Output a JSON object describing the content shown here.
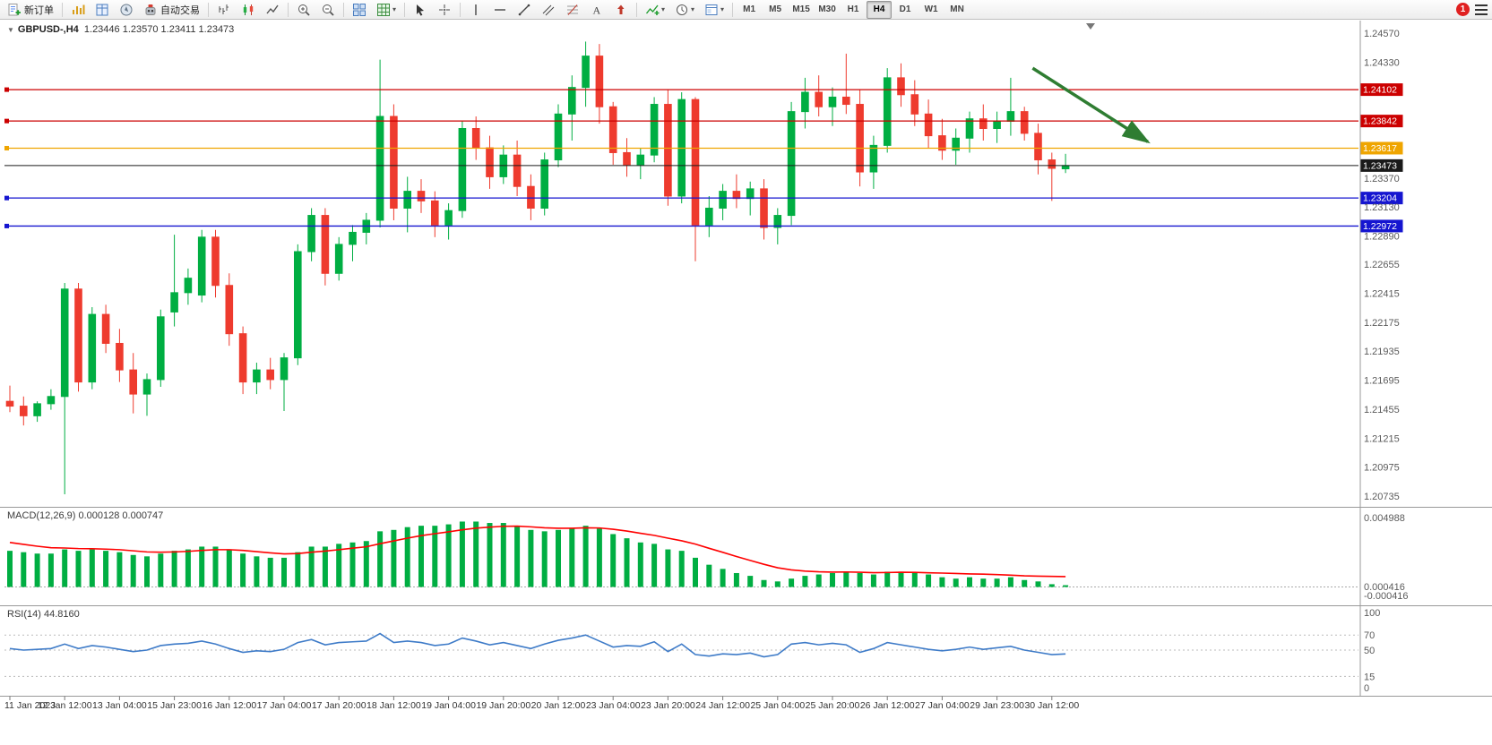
{
  "toolbar": {
    "new_order": "新订单",
    "autotrade": "自动交易",
    "timeframes": [
      "M1",
      "M5",
      "M15",
      "M30",
      "H1",
      "H4",
      "D1",
      "W1",
      "MN"
    ],
    "active_timeframe": "H4",
    "notification_count": "1"
  },
  "chart": {
    "symbol_title": "GBPUSD-,H4",
    "ohlc": "1.23446 1.23570 1.23411 1.23473",
    "macd_label": "MACD(12,26,9) 0.000128 0.000747",
    "rsi_label": "RSI(14) 44.8160"
  },
  "chart_data": {
    "type": "candlestick",
    "symbol": "GBPUSD-",
    "period": "H4",
    "title": "GBPUSD-,H4 1.23446 1.23570 1.23411 1.23473",
    "current_candle": {
      "open": 1.23446,
      "high": 1.2357,
      "low": 1.23411,
      "close": 1.23473
    },
    "colors": {
      "up": "#00AE42",
      "down": "#EE3B2E",
      "macd_hist": "#00AE42",
      "macd_signal": "#FF0000",
      "rsi": "#3E7BC8",
      "res_line": "#CC0000",
      "pivot_line": "#EFA500",
      "sup_line": "#1515D0",
      "price_line": "#1A1A1A",
      "arrow": "#2F7D32"
    },
    "price_axis_labels": [
      "1.24570",
      "1.24330",
      "1.23370",
      "1.23130",
      "1.22890",
      "1.22655",
      "1.22415",
      "1.22175",
      "1.21935",
      "1.21695",
      "1.21455",
      "1.21215",
      "1.20975",
      "1.20735"
    ],
    "hlines": [
      {
        "price": 1.24102,
        "label": "1.24102",
        "color": "#CC0000"
      },
      {
        "price": 1.23842,
        "label": "1.23842",
        "color": "#CC0000"
      },
      {
        "price": 1.23617,
        "label": "1.23617",
        "color": "#EFA500"
      },
      {
        "price": 1.23204,
        "label": "1.23204",
        "color": "#1515D0"
      },
      {
        "price": 1.22972,
        "label": "1.22972",
        "color": "#1515D0"
      }
    ],
    "current_price": {
      "price": 1.23473,
      "label": "1.23473",
      "color": "#1A1A1A"
    },
    "time_axis_labels": [
      "11 Jan 2023",
      "12 Jan 12:00",
      "13 Jan 04:00",
      "15 Jan 23:00",
      "16 Jan 12:00",
      "17 Jan 04:00",
      "17 Jan 20:00",
      "18 Jan 12:00",
      "19 Jan 04:00",
      "19 Jan 20:00",
      "20 Jan 12:00",
      "23 Jan 04:00",
      "23 Jan 20:00",
      "24 Jan 12:00",
      "25 Jan 04:00",
      "25 Jan 20:00",
      "26 Jan 12:00",
      "27 Jan 04:00",
      "29 Jan 23:00",
      "30 Jan 12:00"
    ],
    "candles": [
      [
        1.2152,
        1.2165,
        1.2143,
        1.2148
      ],
      [
        1.2148,
        1.2156,
        1.2132,
        1.214
      ],
      [
        1.214,
        1.2152,
        1.2135,
        1.215
      ],
      [
        1.215,
        1.2162,
        1.2145,
        1.2156
      ],
      [
        1.2156,
        1.225,
        1.2075,
        1.2245
      ],
      [
        1.2245,
        1.225,
        1.216,
        1.2168
      ],
      [
        1.2168,
        1.223,
        1.2162,
        1.2224
      ],
      [
        1.2224,
        1.2232,
        1.2192,
        1.22
      ],
      [
        1.22,
        1.2212,
        1.2168,
        1.2178
      ],
      [
        1.2178,
        1.2192,
        1.2142,
        1.2158
      ],
      [
        1.2158,
        1.2175,
        1.214,
        1.217
      ],
      [
        1.217,
        1.2228,
        1.2164,
        1.2222
      ],
      [
        1.2226,
        1.229,
        1.2214,
        1.2242
      ],
      [
        1.2242,
        1.2262,
        1.2232,
        1.2254
      ],
      [
        1.224,
        1.2294,
        1.2234,
        1.2288
      ],
      [
        1.2288,
        1.2294,
        1.2238,
        1.2248
      ],
      [
        1.2248,
        1.2258,
        1.2198,
        1.2208
      ],
      [
        1.2208,
        1.2214,
        1.2158,
        1.2168
      ],
      [
        1.2168,
        1.2184,
        1.2158,
        1.2178
      ],
      [
        1.2178,
        1.2188,
        1.2162,
        1.217
      ],
      [
        1.217,
        1.2192,
        1.2144,
        1.2188
      ],
      [
        1.2188,
        1.2282,
        1.2182,
        1.2276
      ],
      [
        1.2276,
        1.2312,
        1.2268,
        1.2306
      ],
      [
        1.2306,
        1.2312,
        1.2248,
        1.2258
      ],
      [
        1.2258,
        1.2288,
        1.2252,
        1.2282
      ],
      [
        1.2282,
        1.2298,
        1.2268,
        1.2292
      ],
      [
        1.2292,
        1.2308,
        1.2282,
        1.2302
      ],
      [
        1.2302,
        1.2435,
        1.2296,
        1.2388
      ],
      [
        1.2388,
        1.2398,
        1.2302,
        1.2312
      ],
      [
        1.2312,
        1.2338,
        1.2292,
        1.2326
      ],
      [
        1.2326,
        1.2336,
        1.2308,
        1.2318
      ],
      [
        1.2318,
        1.2326,
        1.2288,
        1.2298
      ],
      [
        1.2298,
        1.2316,
        1.2286,
        1.231
      ],
      [
        1.231,
        1.2384,
        1.2304,
        1.2378
      ],
      [
        1.2378,
        1.2388,
        1.2352,
        1.2362
      ],
      [
        1.2362,
        1.2372,
        1.2328,
        1.2338
      ],
      [
        1.2338,
        1.2364,
        1.2332,
        1.2356
      ],
      [
        1.2356,
        1.2368,
        1.2322,
        1.233
      ],
      [
        1.233,
        1.234,
        1.2302,
        1.2312
      ],
      [
        1.2312,
        1.2358,
        1.2306,
        1.2352
      ],
      [
        1.2352,
        1.2398,
        1.2346,
        1.239
      ],
      [
        1.239,
        1.2422,
        1.2368,
        1.2412
      ],
      [
        1.2412,
        1.245,
        1.2396,
        1.2438
      ],
      [
        1.2438,
        1.2448,
        1.2382,
        1.2396
      ],
      [
        1.2396,
        1.24,
        1.2348,
        1.2358
      ],
      [
        1.2358,
        1.237,
        1.2338,
        1.2348
      ],
      [
        1.2348,
        1.2362,
        1.2336,
        1.2356
      ],
      [
        1.2356,
        1.2404,
        1.235,
        1.2398
      ],
      [
        1.2398,
        1.241,
        1.2314,
        1.2322
      ],
      [
        1.2322,
        1.2408,
        1.2316,
        1.2402
      ],
      [
        1.2402,
        1.2404,
        1.2268,
        1.2298
      ],
      [
        1.2298,
        1.2322,
        1.2288,
        1.2312
      ],
      [
        1.2312,
        1.2332,
        1.2302,
        1.2326
      ],
      [
        1.2326,
        1.234,
        1.2312,
        1.232
      ],
      [
        1.232,
        1.2334,
        1.2306,
        1.2328
      ],
      [
        1.2328,
        1.2336,
        1.2286,
        1.2296
      ],
      [
        1.2296,
        1.2312,
        1.2282,
        1.2306
      ],
      [
        1.2306,
        1.24,
        1.2298,
        1.2392
      ],
      [
        1.2392,
        1.242,
        1.2378,
        1.2408
      ],
      [
        1.2408,
        1.2422,
        1.2388,
        1.2396
      ],
      [
        1.2396,
        1.2412,
        1.238,
        1.2404
      ],
      [
        1.2404,
        1.244,
        1.239,
        1.2398
      ],
      [
        1.2398,
        1.241,
        1.233,
        1.2342
      ],
      [
        1.2342,
        1.2372,
        1.2328,
        1.2364
      ],
      [
        1.2364,
        1.2428,
        1.2358,
        1.242
      ],
      [
        1.242,
        1.2432,
        1.2396,
        1.2406
      ],
      [
        1.2406,
        1.2418,
        1.238,
        1.239
      ],
      [
        1.239,
        1.2402,
        1.2362,
        1.2372
      ],
      [
        1.2372,
        1.2386,
        1.2352,
        1.236
      ],
      [
        1.236,
        1.2378,
        1.2348,
        1.237
      ],
      [
        1.237,
        1.2392,
        1.2358,
        1.2386
      ],
      [
        1.2386,
        1.2398,
        1.2368,
        1.2378
      ],
      [
        1.2378,
        1.2392,
        1.2366,
        1.2384
      ],
      [
        1.2384,
        1.242,
        1.2372,
        1.2392
      ],
      [
        1.2392,
        1.2396,
        1.2368,
        1.2374
      ],
      [
        1.2374,
        1.2382,
        1.234,
        1.2352
      ],
      [
        1.2352,
        1.2358,
        1.2318,
        1.2345
      ],
      [
        1.23446,
        1.2357,
        1.23411,
        1.23473
      ]
    ],
    "macd": {
      "label": "MACD(12,26,9) 0.000128 0.000747",
      "params": "12,26,9",
      "main_value": 0.000128,
      "signal_value": 0.000747,
      "scale_labels": [
        "0.004988",
        "0.000416",
        "-0.000416"
      ],
      "hist": [
        0.0026,
        0.0025,
        0.0024,
        0.0024,
        0.0027,
        0.0026,
        0.0027,
        0.0026,
        0.0025,
        0.0023,
        0.0022,
        0.0024,
        0.0026,
        0.0027,
        0.0029,
        0.0029,
        0.0027,
        0.0024,
        0.0022,
        0.0021,
        0.0021,
        0.0025,
        0.0029,
        0.0029,
        0.0031,
        0.0032,
        0.0033,
        0.004,
        0.0041,
        0.0043,
        0.0044,
        0.0044,
        0.0045,
        0.0047,
        0.0047,
        0.0046,
        0.0046,
        0.0044,
        0.0041,
        0.004,
        0.0041,
        0.0042,
        0.0044,
        0.0042,
        0.0038,
        0.0035,
        0.0032,
        0.0031,
        0.0027,
        0.0026,
        0.0021,
        0.0016,
        0.0013,
        0.001,
        0.0008,
        0.0005,
        0.0004,
        0.0006,
        0.0008,
        0.0009,
        0.001,
        0.0011,
        0.001,
        0.0009,
        0.0011,
        0.0011,
        0.001,
        0.0009,
        0.0007,
        0.0006,
        0.0007,
        0.0006,
        0.0006,
        0.0007,
        0.0005,
        0.0004,
        0.0002,
        0.000128
      ],
      "signal": [
        0.0032,
        0.00306,
        0.00293,
        0.00282,
        0.0028,
        0.00276,
        0.00275,
        0.00272,
        0.00268,
        0.0026,
        0.00252,
        0.0025,
        0.00252,
        0.00256,
        0.00263,
        0.00268,
        0.00268,
        0.00263,
        0.00254,
        0.00245,
        0.00238,
        0.0024,
        0.0025,
        0.00258,
        0.00268,
        0.00279,
        0.00289,
        0.00311,
        0.00331,
        0.00351,
        0.00369,
        0.00383,
        0.00396,
        0.00411,
        0.00423,
        0.0043,
        0.00436,
        0.00437,
        0.00432,
        0.00425,
        0.00422,
        0.00422,
        0.00425,
        0.00424,
        0.00415,
        0.00402,
        0.00386,
        0.00371,
        0.00351,
        0.00332,
        0.00308,
        0.00278,
        0.00249,
        0.00219,
        0.00191,
        0.00163,
        0.00138,
        0.00123,
        0.00114,
        0.00109,
        0.00107,
        0.00108,
        0.00106,
        0.00103,
        0.00104,
        0.00106,
        0.00105,
        0.00102,
        0.001,
        0.00097,
        0.00094,
        0.00092,
        0.00089,
        0.00085,
        0.0008,
        0.00078,
        0.00076,
        0.000747
      ]
    },
    "rsi": {
      "label": "RSI(14) 44.8160",
      "period": 14,
      "current": 44.816,
      "levels": [
        70,
        50,
        15
      ],
      "scale_labels": [
        "100",
        "70",
        "50",
        "15",
        "0"
      ],
      "values": [
        52,
        50,
        51,
        52,
        58,
        52,
        56,
        54,
        51,
        48,
        50,
        56,
        58,
        59,
        62,
        58,
        52,
        47,
        49,
        48,
        51,
        60,
        64,
        57,
        60,
        61,
        62,
        72,
        60,
        62,
        60,
        56,
        58,
        66,
        62,
        57,
        60,
        56,
        52,
        58,
        63,
        66,
        70,
        62,
        54,
        56,
        55,
        61,
        48,
        58,
        44,
        42,
        45,
        44,
        46,
        41,
        44,
        58,
        60,
        57,
        59,
        57,
        47,
        52,
        60,
        57,
        54,
        51,
        49,
        51,
        54,
        51,
        53,
        55,
        50,
        47,
        44,
        44.816
      ]
    },
    "trend_arrow": {
      "from": {
        "index": 74.6,
        "price": 1.2428
      },
      "to": {
        "index": 83,
        "price": 1.2367
      }
    }
  }
}
